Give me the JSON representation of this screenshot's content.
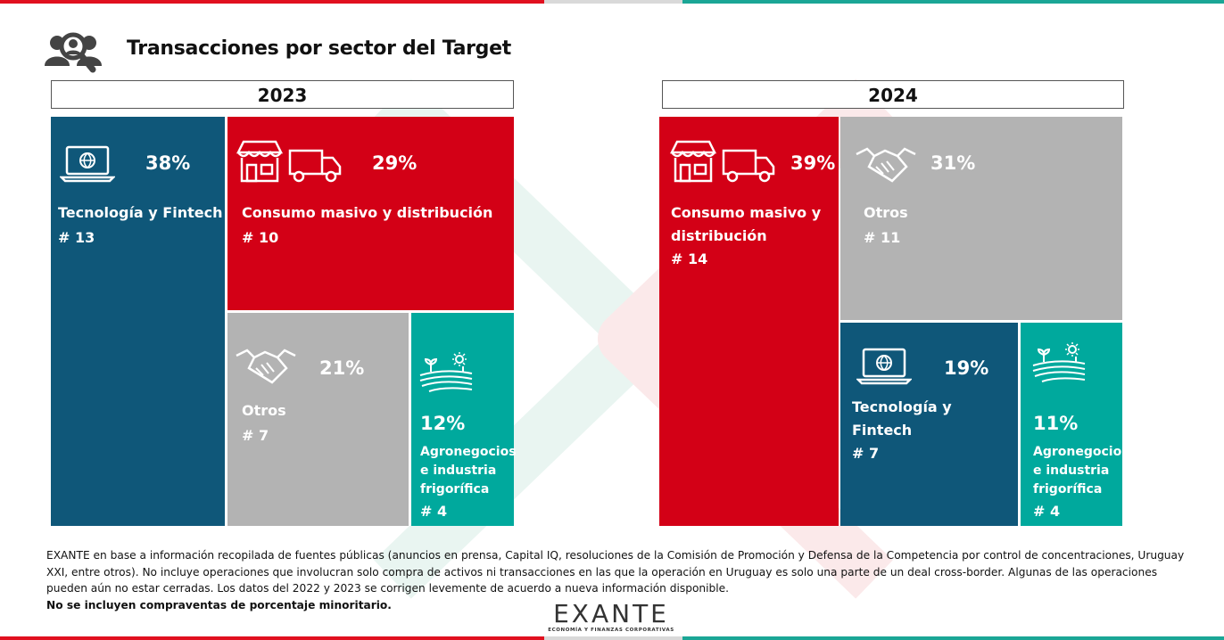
{
  "page": {
    "title": "Transacciones por sector del Target",
    "icon": "people-search-icon"
  },
  "colors": {
    "tecnologia": "#0f5779",
    "consumo": "#d30016",
    "otros": "#b3b3b3",
    "agro": "#00a99d"
  },
  "chart_data": [
    {
      "type": "treemap",
      "title": "2023",
      "items": [
        {
          "sector": "Tecnología y Fintech",
          "percent": 38,
          "percent_label": "38%",
          "count_label": "# 13",
          "icon": "laptop-globe-icon"
        },
        {
          "sector": "Consumo masivo y distribución",
          "percent": 29,
          "percent_label": "29%",
          "count_label": "# 10",
          "icon": "store-truck-icon"
        },
        {
          "sector": "Otros",
          "percent": 21,
          "percent_label": "21%",
          "count_label": "# 7",
          "icon": "handshake-icon"
        },
        {
          "sector": "Agronegocios e industria frigorífica",
          "sector_lines": [
            "Agronegocios",
            "e industria",
            "frigorífica"
          ],
          "percent": 12,
          "percent_label": "12%",
          "count_label": "# 4",
          "icon": "farm-field-icon"
        }
      ]
    },
    {
      "type": "treemap",
      "title": "2024",
      "items": [
        {
          "sector": "Consumo masivo y distribución",
          "sector_lines": [
            "Consumo masivo y",
            "distribución"
          ],
          "percent": 39,
          "percent_label": "39%",
          "count_label": "# 14",
          "icon": "store-truck-icon"
        },
        {
          "sector": "Otros",
          "percent": 31,
          "percent_label": "31%",
          "count_label": "# 11",
          "icon": "handshake-icon"
        },
        {
          "sector": "Tecnología y Fintech",
          "sector_lines": [
            "Tecnología y",
            "Fintech"
          ],
          "percent": 19,
          "percent_label": "19%",
          "count_label": "# 7",
          "icon": "laptop-globe-icon"
        },
        {
          "sector": "Agronegocios e industria frigorífica",
          "sector_lines": [
            "Agronegocios",
            "e industria",
            "frigorífica"
          ],
          "percent": 11,
          "percent_label": "11%",
          "count_label": "# 4",
          "icon": "farm-field-icon"
        }
      ]
    }
  ],
  "footer": {
    "source_note": "EXANTE en base a información recopilada de fuentes públicas (anuncios en prensa, Capital IQ, resoluciones de la Comisión de Promoción y Defensa de la Competencia por control de concentraciones, Uruguay XXI, entre otros). No incluye operaciones que involucran solo compra de activos ni transacciones en las que la operación en Uruguay es solo una parte de un deal cross-border. Algunas de las operaciones pueden aún no estar cerradas. Los datos del 2022 y 2023 se corrigen levemente de acuerdo a nueva información disponible.",
    "bold_note": "No se incluyen compraventas de porcentaje minoritario.",
    "logo_word": "EXANTE",
    "logo_tagline": "ECONOMÍA Y FINANZAS CORPORATIVAS"
  }
}
